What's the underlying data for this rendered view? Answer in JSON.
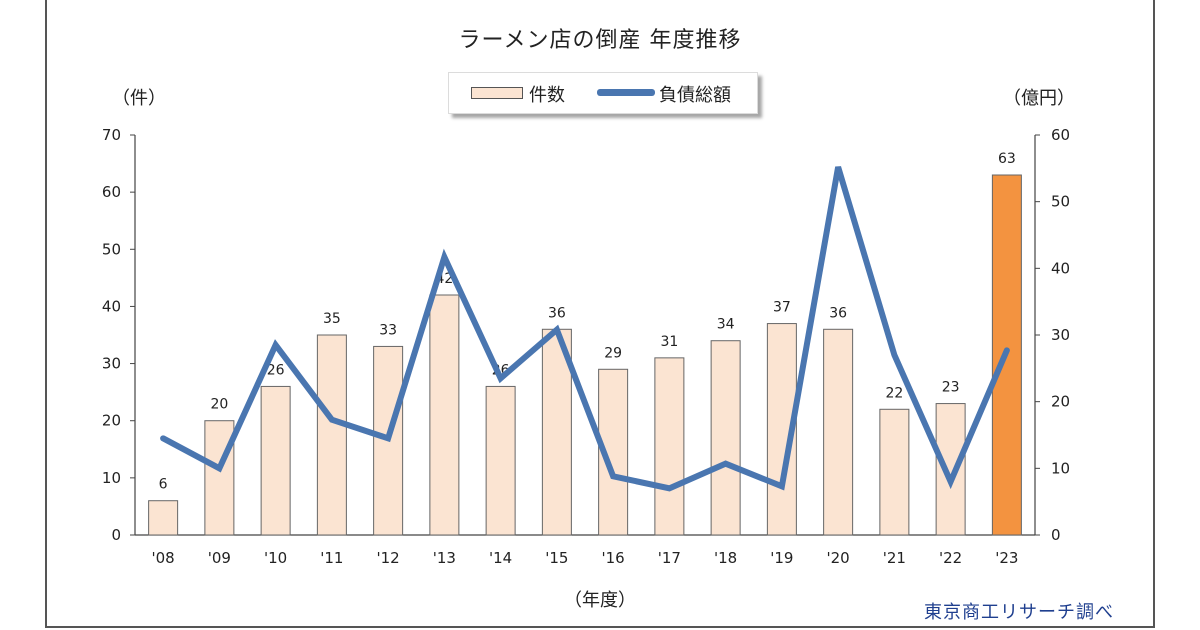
{
  "chart_data": {
    "type": "bar",
    "title": "ラーメン店の倒産  年度推移",
    "categories": [
      "'08",
      "'09",
      "'10",
      "'11",
      "'12",
      "'13",
      "'14",
      "'15",
      "'16",
      "'17",
      "'18",
      "'19",
      "'20",
      "'21",
      "'22",
      "'23"
    ],
    "series": [
      {
        "name": "件数",
        "type": "bar",
        "axis": "left",
        "values": [
          6,
          20,
          26,
          35,
          33,
          42,
          26,
          36,
          29,
          31,
          34,
          37,
          36,
          22,
          23,
          63
        ],
        "color": "#fbe4d2",
        "highlight_color": "#f39340",
        "highlight_index": 15
      },
      {
        "name": "負債総額",
        "type": "line",
        "axis": "right",
        "values": [
          14.5,
          10,
          28.5,
          17.3,
          14.5,
          41.7,
          23.5,
          30.8,
          8.8,
          7,
          10.7,
          7.3,
          55.2,
          27,
          8,
          27.7
        ],
        "color": "#4a76b0"
      }
    ],
    "ylabel_left": "（件）",
    "ylabel_right": "（億円）",
    "xlabel": "（年度）",
    "ylim_left": [
      0,
      70
    ],
    "yticks_left": [
      0,
      10,
      20,
      30,
      40,
      50,
      60,
      70
    ],
    "ylim_right": [
      0,
      60
    ],
    "yticks_right": [
      0,
      10,
      20,
      30,
      40,
      50,
      60
    ],
    "grid": false,
    "legend_position": "top-center",
    "source": "東京商工リサーチ調べ"
  }
}
